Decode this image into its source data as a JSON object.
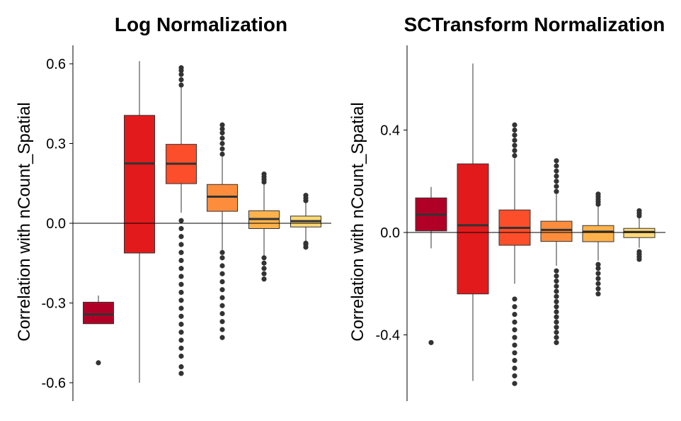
{
  "chart_data": [
    {
      "type": "box",
      "title": "Log Normalization",
      "ylabel": "Correlation with nCount_Spatial",
      "xlabel": "",
      "ylim": [
        -0.67,
        0.67
      ],
      "yticks": [
        0.6,
        0.3,
        0.0,
        -0.3,
        -0.6
      ],
      "ytick_labels": [
        "0.6",
        "0.3",
        "0.0",
        "-0.3",
        "-0.6"
      ],
      "reference_line": 0,
      "boxes": [
        {
          "color": "#b10026",
          "q1": -0.378,
          "median": -0.343,
          "q3": -0.297,
          "whisker_low": -0.378,
          "whisker_high": -0.272,
          "outliers": [
            -0.525
          ]
        },
        {
          "color": "#e31a1c",
          "q1": -0.112,
          "median": 0.225,
          "q3": 0.406,
          "whisker_low": -0.6,
          "whisker_high": 0.61,
          "outliers": []
        },
        {
          "color": "#fc4e2a",
          "q1": 0.149,
          "median": 0.224,
          "q3": 0.297,
          "whisker_low": 0.04,
          "whisker_high": 0.51,
          "outliers": [
            -0.565,
            -0.54,
            -0.5,
            -0.47,
            -0.44,
            -0.41,
            -0.38,
            -0.35,
            -0.32,
            -0.29,
            -0.26,
            -0.23,
            -0.2,
            -0.17,
            -0.14,
            -0.11,
            -0.08,
            -0.05,
            -0.02,
            0.01,
            0.52,
            0.54,
            0.56,
            0.575,
            0.585
          ]
        },
        {
          "color": "#fd8d3c",
          "q1": 0.045,
          "median": 0.1,
          "q3": 0.146,
          "whisker_low": -0.1,
          "whisker_high": 0.25,
          "outliers": [
            -0.43,
            -0.4,
            -0.37,
            -0.34,
            -0.31,
            -0.28,
            -0.25,
            -0.22,
            -0.19,
            -0.16,
            -0.13,
            -0.11,
            0.26,
            0.28,
            0.3,
            0.32,
            0.34,
            0.355,
            0.37
          ]
        },
        {
          "color": "#feb24c",
          "q1": -0.02,
          "median": 0.016,
          "q3": 0.047,
          "whisker_low": -0.12,
          "whisker_high": 0.15,
          "outliers": [
            -0.21,
            -0.19,
            -0.17,
            -0.15,
            -0.13,
            0.155,
            0.165,
            0.175,
            0.185
          ]
        },
        {
          "color": "#fed976",
          "q1": -0.014,
          "median": 0.008,
          "q3": 0.027,
          "whisker_low": -0.07,
          "whisker_high": 0.08,
          "outliers": [
            -0.09,
            -0.08,
            -0.075,
            0.085,
            0.095,
            0.105
          ]
        }
      ]
    },
    {
      "type": "box",
      "title": "SCTransform Normalization",
      "ylabel": "Correlation with nCount_Spatial",
      "xlabel": "",
      "ylim": [
        -0.66,
        0.66
      ],
      "yticks": [
        0.4,
        0.0,
        -0.4
      ],
      "ytick_labels": [
        "0.4",
        "0.0",
        "-0.4"
      ],
      "reference_line": 0,
      "boxes": [
        {
          "color": "#b10026",
          "q1": 0.006,
          "median": 0.07,
          "q3": 0.135,
          "whisker_low": -0.062,
          "whisker_high": 0.178,
          "outliers": [
            -0.43
          ]
        },
        {
          "color": "#e31a1c",
          "q1": -0.24,
          "median": 0.028,
          "q3": 0.268,
          "whisker_low": -0.58,
          "whisker_high": 0.66,
          "outliers": []
        },
        {
          "color": "#fc4e2a",
          "q1": -0.05,
          "median": 0.018,
          "q3": 0.088,
          "whisker_low": -0.2,
          "whisker_high": 0.29,
          "outliers": [
            -0.59,
            -0.56,
            -0.53,
            -0.5,
            -0.47,
            -0.44,
            -0.41,
            -0.38,
            -0.35,
            -0.32,
            -0.29,
            -0.26,
            0.3,
            0.32,
            0.34,
            0.36,
            0.38,
            0.4,
            0.42
          ]
        },
        {
          "color": "#fd8d3c",
          "q1": -0.035,
          "median": 0.01,
          "q3": 0.044,
          "whisker_low": -0.13,
          "whisker_high": 0.15,
          "outliers": [
            -0.43,
            -0.41,
            -0.39,
            -0.37,
            -0.35,
            -0.33,
            -0.31,
            -0.29,
            -0.27,
            -0.25,
            -0.23,
            -0.21,
            -0.19,
            -0.17,
            -0.15,
            0.16,
            0.18,
            0.2,
            0.22,
            0.24,
            0.26,
            0.28
          ]
        },
        {
          "color": "#feb24c",
          "q1": -0.036,
          "median": 0.003,
          "q3": 0.027,
          "whisker_low": -0.11,
          "whisker_high": 0.1,
          "outliers": [
            -0.24,
            -0.22,
            -0.2,
            -0.18,
            -0.16,
            -0.14,
            -0.125,
            0.11,
            0.12,
            0.13,
            0.14,
            0.15
          ]
        },
        {
          "color": "#fed976",
          "q1": -0.02,
          "median": 0.002,
          "q3": 0.016,
          "whisker_low": -0.06,
          "whisker_high": 0.06,
          "outliers": [
            -0.105,
            -0.095,
            -0.085,
            -0.075,
            0.065,
            0.075,
            0.085
          ]
        }
      ]
    }
  ],
  "style": {
    "median_color": "#333333",
    "box_edge_color": "#333333",
    "outlier_color": "#333333",
    "axis_color": "#000000"
  }
}
